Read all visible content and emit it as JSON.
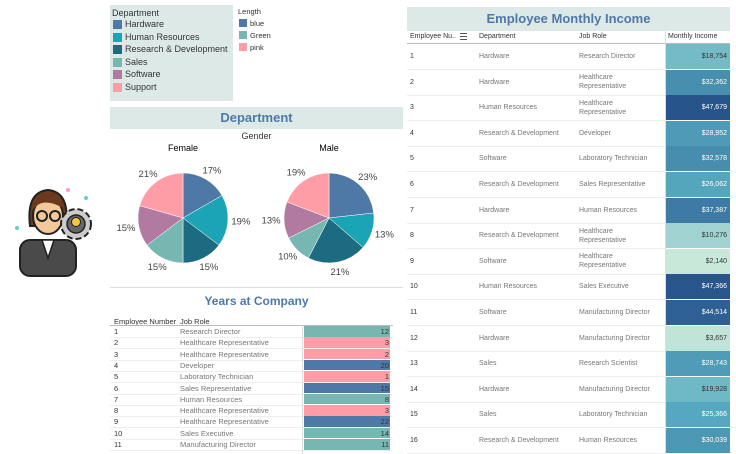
{
  "department_legend": {
    "title": "Department",
    "items": [
      {
        "label": "Hardware",
        "color": "#4e79a7"
      },
      {
        "label": "Human Resources",
        "color": "#1ba3b6"
      },
      {
        "label": "Research & Development",
        "color": "#1d6b80"
      },
      {
        "label": "Sales",
        "color": "#76b7b2"
      },
      {
        "label": "Software",
        "color": "#b07aa1"
      },
      {
        "label": "Support",
        "color": "#ff9da7"
      }
    ]
  },
  "length_legend": {
    "title": "Length",
    "items": [
      {
        "label": "blue",
        "color": "#4e79a7"
      },
      {
        "label": "Green",
        "color": "#76b7b2"
      },
      {
        "label": "pink",
        "color": "#ff9da7"
      }
    ]
  },
  "chart_data": [
    {
      "type": "pie",
      "title": "Department",
      "subtitle": "Gender",
      "label": "Female",
      "categories": [
        "Hardware",
        "Human Resources",
        "Research & Development",
        "Sales",
        "Software",
        "Support"
      ],
      "values": [
        17,
        19,
        15,
        15,
        15,
        21
      ],
      "value_labels": [
        "17%",
        "19%",
        "15%",
        "15%",
        "15%",
        "21%"
      ],
      "colors": [
        "#4e79a7",
        "#1ba3b6",
        "#1d6b80",
        "#76b7b2",
        "#b07aa1",
        "#ff9da7"
      ]
    },
    {
      "type": "pie",
      "label": "Male",
      "categories": [
        "Hardware",
        "Human Resources",
        "Research & Development",
        "Sales",
        "Software",
        "Support"
      ],
      "values": [
        23,
        13,
        21,
        10,
        13,
        19
      ],
      "value_labels": [
        "23%",
        "13%",
        "21%",
        "10%",
        "13%",
        "19%"
      ],
      "colors": [
        "#4e79a7",
        "#1ba3b6",
        "#1d6b80",
        "#76b7b2",
        "#b07aa1",
        "#ff9da7"
      ]
    }
  ],
  "years_table": {
    "title": "Years at Company",
    "columns": [
      "Employee Number",
      "Job Role"
    ],
    "rows": [
      {
        "employee": "1",
        "role": "Research Director",
        "years": 12,
        "length": "Green"
      },
      {
        "employee": "2",
        "role": "Healthcare Representative",
        "years": 3,
        "length": "pink"
      },
      {
        "employee": "3",
        "role": "Healthcare Representative",
        "years": 2,
        "length": "pink"
      },
      {
        "employee": "4",
        "role": "Developer",
        "years": 20,
        "length": "blue"
      },
      {
        "employee": "5",
        "role": "Laboratory Technician",
        "years": 1,
        "length": "pink"
      },
      {
        "employee": "6",
        "role": "Sales Representative",
        "years": 15,
        "length": "blue"
      },
      {
        "employee": "7",
        "role": "Human Resources",
        "years": 8,
        "length": "Green"
      },
      {
        "employee": "8",
        "role": "Healthcare Representative",
        "years": 3,
        "length": "pink"
      },
      {
        "employee": "9",
        "role": "Healthcare Representative",
        "years": 22,
        "length": "blue"
      },
      {
        "employee": "10",
        "role": "Sales Executive",
        "years": 14,
        "length": "Green"
      },
      {
        "employee": "11",
        "role": "Manufacturing Director",
        "years": 11,
        "length": "Green"
      }
    ]
  },
  "income_table": {
    "title": "Employee Monthly Income",
    "columns": [
      "Employee Nu..",
      "Department",
      "Job Role",
      "Monthly Income"
    ],
    "rows": [
      {
        "id": "1",
        "department": "Hardware",
        "role": "Research Director",
        "income": 18754,
        "income_label": "$18,754"
      },
      {
        "id": "2",
        "department": "Hardware",
        "role": "Healthcare Representative",
        "income": 32362,
        "income_label": "$32,362"
      },
      {
        "id": "3",
        "department": "Human Resources",
        "role": "Healthcare Representative",
        "income": 47679,
        "income_label": "$47,679"
      },
      {
        "id": "4",
        "department": "Research & Development",
        "role": "Developer",
        "income": 28952,
        "income_label": "$28,952"
      },
      {
        "id": "5",
        "department": "Software",
        "role": "Laboratory Technician",
        "income": 32578,
        "income_label": "$32,578"
      },
      {
        "id": "6",
        "department": "Research & Development",
        "role": "Sales Representative",
        "income": 26062,
        "income_label": "$26,062"
      },
      {
        "id": "7",
        "department": "Hardware",
        "role": "Human Resources",
        "income": 37387,
        "income_label": "$37,387"
      },
      {
        "id": "8",
        "department": "Research & Development",
        "role": "Healthcare Representative",
        "income": 10276,
        "income_label": "$10,276"
      },
      {
        "id": "9",
        "department": "Software",
        "role": "Healthcare Representative",
        "income": 2140,
        "income_label": "$2,140"
      },
      {
        "id": "10",
        "department": "Human Resources",
        "role": "Sales Executive",
        "income": 47366,
        "income_label": "$47,366"
      },
      {
        "id": "11",
        "department": "Software",
        "role": "Manufacturing Director",
        "income": 44514,
        "income_label": "$44,514"
      },
      {
        "id": "12",
        "department": "Hardware",
        "role": "Manufacturing Director",
        "income": 3657,
        "income_label": "$3,657"
      },
      {
        "id": "13",
        "department": "Sales",
        "role": "Research Scientist",
        "income": 28743,
        "income_label": "$28,743"
      },
      {
        "id": "14",
        "department": "Hardware",
        "role": "Manufacturing Director",
        "income": 19928,
        "income_label": "$19,928"
      },
      {
        "id": "15",
        "department": "Sales",
        "role": "Laboratory Technician",
        "income": 25366,
        "income_label": "$25,366"
      },
      {
        "id": "16",
        "department": "Research & Development",
        "role": "Human Resources",
        "income": 30039,
        "income_label": "$30,039"
      }
    ]
  }
}
